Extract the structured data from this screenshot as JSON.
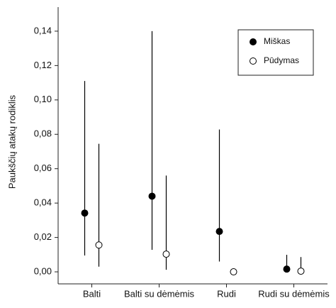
{
  "chart_data": {
    "type": "errorbar",
    "y_label": "Paukščių atakų rodiklis",
    "categories": [
      "Balti",
      "Balti su dėmėmis",
      "Rudi",
      "Rudi su dėmėmis"
    ],
    "series": [
      {
        "name": "Miškas",
        "color": "#000000",
        "filled": true,
        "values": [
          0.0342,
          0.044,
          0.0235,
          0.0016
        ],
        "lower": [
          0.0095,
          0.0128,
          0.006,
          0.0
        ],
        "upper": [
          0.111,
          0.14,
          0.0828,
          0.0099
        ]
      },
      {
        "name": "Pūdymas",
        "color": "#000000",
        "filled": false,
        "values": [
          0.0156,
          0.0103,
          0.0,
          0.0004
        ],
        "lower": [
          0.003,
          0.0012,
          0.0,
          0.0
        ],
        "upper": [
          0.0745,
          0.056,
          0.0,
          0.0086
        ]
      }
    ],
    "ylim": [
      -0.007,
      0.154
    ],
    "yticks": [
      {
        "value": 0,
        "label": "0,00"
      },
      {
        "value": 0.02,
        "label": "0,02"
      },
      {
        "value": 0.04,
        "label": "0,04"
      },
      {
        "value": 0.06,
        "label": "0,06"
      },
      {
        "value": 0.08,
        "label": "0,08"
      },
      {
        "value": 0.1,
        "label": "0,10"
      },
      {
        "value": 0.12,
        "label": "0,12"
      },
      {
        "value": 0.14,
        "label": "0,14"
      }
    ],
    "legend": "top-right",
    "grid": false
  }
}
